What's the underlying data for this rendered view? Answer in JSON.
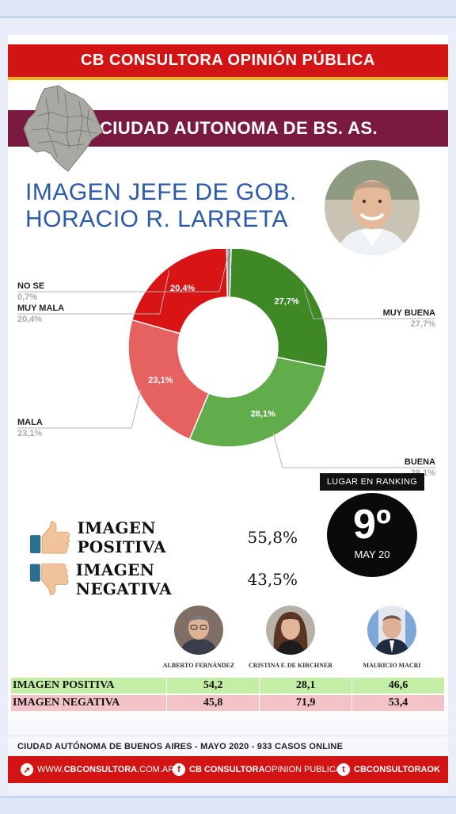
{
  "header": {
    "consultora": "CB CONSULTORA OPINIÓN PÚBLICA"
  },
  "region": {
    "name": "CIUDAD AUTONOMA DE BS. AS."
  },
  "headline": {
    "line1": "IMAGEN JEFE DE GOB.",
    "line2": "HORACIO R. LARRETA"
  },
  "colors": {
    "muy_buena": "#3e8826",
    "buena": "#62ad4b",
    "mala": "#e66261",
    "muy_mala": "#d81414",
    "no_se": "#8d8d8d",
    "brand_red": "#d21414",
    "region_purple": "#7b1a40",
    "headline_blue": "#2d5aa8"
  },
  "chart_data": {
    "type": "pie",
    "variant": "donut",
    "categories": [
      "MUY BUENA",
      "BUENA",
      "MALA",
      "MUY MALA",
      "NO SE"
    ],
    "values": [
      27.7,
      28.1,
      23.1,
      20.4,
      0.7
    ],
    "labels": [
      "27,7%",
      "28,1%",
      "23,1%",
      "20,4%",
      "0,7%"
    ],
    "colors": [
      "#3e8826",
      "#62ad4b",
      "#e66261",
      "#d81414",
      "#8d8d8d"
    ]
  },
  "summary": {
    "positive_label": "IMAGEN POSITIVA",
    "positive_value": "55,8%",
    "negative_label": "IMAGEN NEGATIVA",
    "negative_value": "43,5%",
    "icons": [
      "thumbs-up-icon",
      "thumbs-down-icon"
    ]
  },
  "ranking": {
    "title": "LUGAR EN RANKING",
    "position": "9º",
    "date": "MAY 20"
  },
  "comparison": {
    "candidates": [
      "ALBERTO FERNÁNDEZ",
      "CRISTINA F. DE KIRCHNER",
      "MAURICIO MACRI"
    ],
    "rows": [
      {
        "label": "IMAGEN POSITIVA",
        "values": [
          "54,2",
          "28,1",
          "46,6"
        ]
      },
      {
        "label": "IMAGEN NEGATIVA",
        "values": [
          "45,8",
          "71,9",
          "53,4"
        ]
      }
    ]
  },
  "footer": {
    "note": "CIUDAD AUTÓNOMA DE BUENOS AIRES - MAYO 2020 - 933 CASOS ONLINE",
    "web_bold": "CBCONSULTORA",
    "web_rest": ".COM.AR",
    "web_prefix": "WWW.",
    "facebook_bold": "CB CONSULTORA",
    "facebook_rest": " OPINION PUBLICA",
    "twitter": "CBCONSULTORAOK"
  }
}
